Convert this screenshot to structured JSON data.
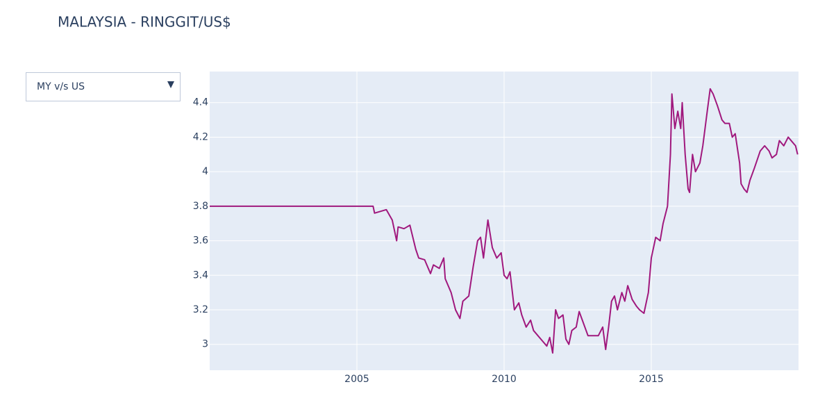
{
  "chart_data": {
    "type": "line",
    "title": "MALAYSIA - RINGGIT/US$",
    "dropdown": {
      "selected": "MY v/s US"
    },
    "xlim": [
      2000,
      2020
    ],
    "xticks": [
      2005,
      2010,
      2015
    ],
    "ylim": [
      2.85,
      4.58
    ],
    "yticks": [
      3,
      3.2,
      3.4,
      3.6,
      3.8,
      4,
      4.2,
      4.4
    ],
    "grid": true,
    "x": [
      2000,
      2005.55,
      2005.6,
      2005.8,
      2006.0,
      2006.2,
      2006.35,
      2006.4,
      2006.6,
      2006.8,
      2007.0,
      2007.1,
      2007.3,
      2007.5,
      2007.6,
      2007.8,
      2007.95,
      2008.0,
      2008.2,
      2008.35,
      2008.5,
      2008.6,
      2008.8,
      2008.95,
      2009.1,
      2009.2,
      2009.3,
      2009.45,
      2009.6,
      2009.75,
      2009.9,
      2010.0,
      2010.1,
      2010.2,
      2010.35,
      2010.5,
      2010.6,
      2010.75,
      2010.9,
      2011.0,
      2011.15,
      2011.3,
      2011.45,
      2011.55,
      2011.65,
      2011.75,
      2011.85,
      2012.0,
      2012.1,
      2012.2,
      2012.3,
      2012.45,
      2012.55,
      2012.7,
      2012.85,
      2013.0,
      2013.2,
      2013.35,
      2013.45,
      2013.55,
      2013.65,
      2013.75,
      2013.85,
      2014.0,
      2014.1,
      2014.2,
      2014.35,
      2014.5,
      2014.6,
      2014.75,
      2014.9,
      2015.0,
      2015.15,
      2015.3,
      2015.4,
      2015.55,
      2015.65,
      2015.7,
      2015.8,
      2015.9,
      2016.0,
      2016.05,
      2016.15,
      2016.25,
      2016.3,
      2016.4,
      2016.5,
      2016.65,
      2016.75,
      2016.9,
      2017.0,
      2017.1,
      2017.25,
      2017.4,
      2017.5,
      2017.65,
      2017.75,
      2017.85,
      2018.0,
      2018.05,
      2018.15,
      2018.25,
      2018.35,
      2018.5,
      2018.7,
      2018.85,
      2019.0,
      2019.1,
      2019.25,
      2019.35,
      2019.5,
      2019.65,
      2019.75,
      2019.9,
      2019.97
    ],
    "series": [
      {
        "color": "#a0187d",
        "values": [
          3.8,
          3.8,
          3.76,
          3.77,
          3.78,
          3.72,
          3.6,
          3.68,
          3.67,
          3.69,
          3.55,
          3.5,
          3.49,
          3.41,
          3.46,
          3.44,
          3.5,
          3.38,
          3.3,
          3.2,
          3.15,
          3.25,
          3.28,
          3.45,
          3.6,
          3.62,
          3.5,
          3.72,
          3.56,
          3.5,
          3.53,
          3.4,
          3.38,
          3.42,
          3.2,
          3.24,
          3.17,
          3.1,
          3.14,
          3.08,
          3.05,
          3.02,
          2.99,
          3.04,
          2.95,
          3.2,
          3.15,
          3.17,
          3.03,
          3.0,
          3.08,
          3.1,
          3.19,
          3.12,
          3.05,
          3.05,
          3.05,
          3.1,
          2.97,
          3.1,
          3.25,
          3.28,
          3.2,
          3.3,
          3.25,
          3.34,
          3.26,
          3.22,
          3.2,
          3.18,
          3.3,
          3.5,
          3.62,
          3.6,
          3.7,
          3.8,
          4.1,
          4.45,
          4.25,
          4.35,
          4.25,
          4.4,
          4.1,
          3.9,
          3.88,
          4.1,
          4.0,
          4.05,
          4.15,
          4.35,
          4.48,
          4.45,
          4.38,
          4.3,
          4.28,
          4.28,
          4.2,
          4.22,
          4.05,
          3.93,
          3.9,
          3.88,
          3.95,
          4.02,
          4.12,
          4.15,
          4.12,
          4.08,
          4.1,
          4.18,
          4.15,
          4.2,
          4.18,
          4.15,
          4.1
        ]
      }
    ]
  }
}
